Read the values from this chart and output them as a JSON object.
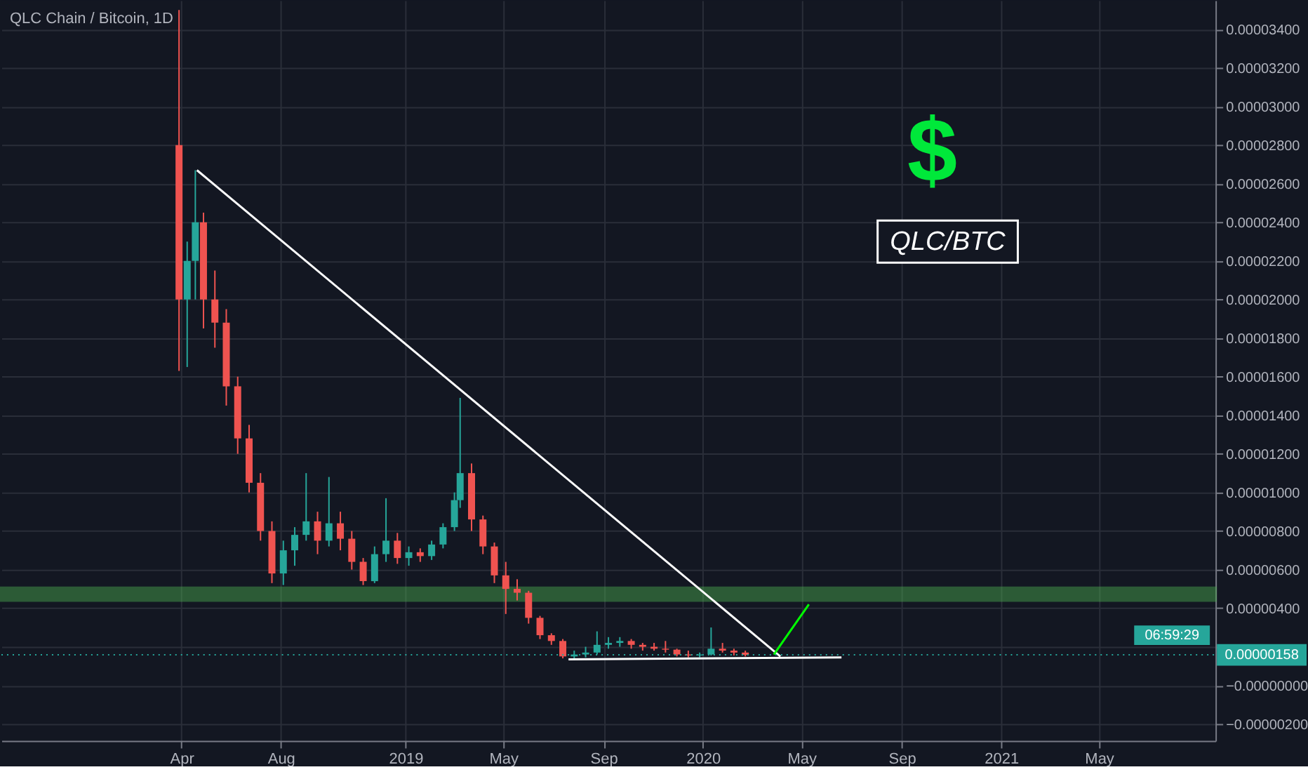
{
  "chart_data": {
    "type": "candlestick",
    "title": "QLC Chain / Bitcoin, 1D",
    "x": [
      "2018-03-29",
      "2018-04-08",
      "2018-04-18",
      "2018-04-28",
      "2018-05-12",
      "2018-05-26",
      "2018-06-09",
      "2018-06-23",
      "2018-07-07",
      "2018-07-21",
      "2018-08-04",
      "2018-08-18",
      "2018-09-01",
      "2018-09-15",
      "2018-09-29",
      "2018-10-13",
      "2018-10-27",
      "2018-11-10",
      "2018-11-24",
      "2018-12-08",
      "2018-12-22",
      "2019-01-05",
      "2019-01-19",
      "2019-02-02",
      "2019-02-16",
      "2019-03-02",
      "2019-03-09",
      "2019-03-23",
      "2019-04-06",
      "2019-04-20",
      "2019-05-04",
      "2019-05-18",
      "2019-06-01",
      "2019-06-15",
      "2019-06-29",
      "2019-07-13",
      "2019-07-27",
      "2019-08-10",
      "2019-08-24",
      "2019-09-07",
      "2019-09-21",
      "2019-10-05",
      "2019-10-19",
      "2019-11-02",
      "2019-11-16",
      "2019-11-30",
      "2019-12-14",
      "2019-12-28",
      "2020-01-11",
      "2020-01-25",
      "2020-02-08",
      "2020-02-22"
    ],
    "ohlc": [
      [
        2.8e-05,
        3.5e-05,
        1.63e-05,
        2e-05
      ],
      [
        2e-05,
        2.3e-05,
        1.65e-05,
        2.2e-05
      ],
      [
        2.2e-05,
        2.67e-05,
        2e-05,
        2.4e-05
      ],
      [
        2.4e-05,
        2.45e-05,
        1.85e-05,
        2e-05
      ],
      [
        2e-05,
        2.15e-05,
        1.75e-05,
        1.88e-05
      ],
      [
        1.88e-05,
        1.95e-05,
        1.45e-05,
        1.55e-05
      ],
      [
        1.55e-05,
        1.6e-05,
        1.2e-05,
        1.28e-05
      ],
      [
        1.28e-05,
        1.35e-05,
        1e-05,
        1.05e-05
      ],
      [
        1.05e-05,
        1.1e-05,
        7.5e-06,
        8e-06
      ],
      [
        8e-06,
        8.5e-06,
        5.3e-06,
        5.8e-06
      ],
      [
        5.8e-06,
        7.5e-06,
        5.2e-06,
        7e-06
      ],
      [
        7e-06,
        8.2e-06,
        6.2e-06,
        7.8e-06
      ],
      [
        7.8e-06,
        1.1e-05,
        7.5e-06,
        8.5e-06
      ],
      [
        8.5e-06,
        9e-06,
        6.8e-06,
        7.5e-06
      ],
      [
        7.5e-06,
        1.08e-05,
        7.2e-06,
        8.4e-06
      ],
      [
        8.4e-06,
        9e-06,
        7e-06,
        7.6e-06
      ],
      [
        7.6e-06,
        8e-06,
        6e-06,
        6.4e-06
      ],
      [
        6.4e-06,
        6.6e-06,
        5.2e-06,
        5.4e-06
      ],
      [
        5.4e-06,
        7.2e-06,
        5.3e-06,
        6.8e-06
      ],
      [
        6.8e-06,
        9.7e-06,
        6.4e-06,
        7.5e-06
      ],
      [
        7.5e-06,
        7.9e-06,
        6.3e-06,
        6.6e-06
      ],
      [
        6.6e-06,
        7.2e-06,
        6.2e-06,
        6.9e-06
      ],
      [
        6.9e-06,
        7.1e-06,
        6.4e-06,
        6.7e-06
      ],
      [
        6.7e-06,
        7.5e-06,
        6.5e-06,
        7.3e-06
      ],
      [
        7.3e-06,
        8.4e-06,
        7.1e-06,
        8.2e-06
      ],
      [
        8.2e-06,
        1e-05,
        8e-06,
        9.6e-06
      ],
      [
        9.6e-06,
        1.49e-05,
        9.2e-06,
        1.1e-05
      ],
      [
        1.1e-05,
        1.15e-05,
        8e-06,
        8.6e-06
      ],
      [
        8.6e-06,
        8.8e-06,
        6.8e-06,
        7.2e-06
      ],
      [
        7.2e-06,
        7.4e-06,
        5.3e-06,
        5.7e-06
      ],
      [
        5.7e-06,
        6.4e-06,
        3.7e-06,
        5e-06
      ],
      [
        5e-06,
        5.5e-06,
        4.4e-06,
        4.8e-06
      ],
      [
        4.8e-06,
        4.9e-06,
        3.2e-06,
        3.5e-06
      ],
      [
        3.5e-06,
        3.6e-06,
        2.4e-06,
        2.6e-06
      ],
      [
        2.6e-06,
        2.7e-06,
        2.1e-06,
        2.3e-06
      ],
      [
        2.3e-06,
        2.4e-06,
        1.4e-06,
        1.5e-06
      ],
      [
        1.5e-06,
        1.8e-06,
        1.4e-06,
        1.6e-06
      ],
      [
        1.6e-06,
        2e-06,
        1.45e-06,
        1.7e-06
      ],
      [
        1.7e-06,
        2.8e-06,
        1.6e-06,
        2.1e-06
      ],
      [
        2.1e-06,
        2.5e-06,
        1.9e-06,
        2.2e-06
      ],
      [
        2.2e-06,
        2.5e-06,
        2e-06,
        2.3e-06
      ],
      [
        2.3e-06,
        2.4e-06,
        1.9e-06,
        2.1e-06
      ],
      [
        2.1e-06,
        2.2e-06,
        1.8e-06,
        2e-06
      ],
      [
        2e-06,
        2.2e-06,
        1.8e-06,
        1.9e-06
      ],
      [
        1.9e-06,
        2.3e-06,
        1.7e-06,
        1.85e-06
      ],
      [
        1.85e-06,
        1.9e-06,
        1.5e-06,
        1.6e-06
      ],
      [
        1.6e-06,
        1.8e-06,
        1.45e-06,
        1.55e-06
      ],
      [
        1.55e-06,
        1.7e-06,
        1.45e-06,
        1.6e-06
      ],
      [
        1.6e-06,
        3e-06,
        1.55e-06,
        1.9e-06
      ],
      [
        1.9e-06,
        2.2e-06,
        1.7e-06,
        1.8e-06
      ],
      [
        1.8e-06,
        1.9e-06,
        1.55e-06,
        1.7e-06
      ],
      [
        1.7e-06,
        1.8e-06,
        1.5e-06,
        1.58e-06
      ]
    ],
    "colors": [
      "#ef5350",
      "#26a69a",
      "#26a69a",
      "#ef5350",
      "#ef5350",
      "#ef5350",
      "#ef5350",
      "#ef5350",
      "#ef5350",
      "#ef5350",
      "#26a69a",
      "#26a69a",
      "#26a69a",
      "#ef5350",
      "#26a69a",
      "#ef5350",
      "#ef5350",
      "#ef5350",
      "#26a69a",
      "#26a69a",
      "#ef5350",
      "#26a69a",
      "#ef5350",
      "#26a69a",
      "#26a69a",
      "#26a69a",
      "#26a69a",
      "#ef5350",
      "#ef5350",
      "#ef5350",
      "#ef5350",
      "#ef5350",
      "#ef5350",
      "#ef5350",
      "#ef5350",
      "#ef5350",
      "#26a69a",
      "#26a69a",
      "#26a69a",
      "#26a69a",
      "#26a69a",
      "#ef5350",
      "#ef5350",
      "#ef5350",
      "#ef5350",
      "#ef5350",
      "#ef5350",
      "#26a69a",
      "#26a69a",
      "#ef5350",
      "#ef5350",
      "#ef5350"
    ],
    "series": [
      {
        "type": "line",
        "color": "#ffffff",
        "x": [
          "2018-04-20",
          "2020-04-05"
        ],
        "values": [
          2.67e-05,
          1.5e-06
        ]
      },
      {
        "type": "line",
        "color": "#ffffff",
        "x": [
          "2019-07-20",
          "2020-06-19"
        ],
        "values": [
          1.35e-06,
          1.45e-06
        ]
      },
      {
        "type": "line",
        "color": "#00ff00",
        "x": [
          "2020-03-28",
          "2020-05-10"
        ],
        "values": [
          1.6e-06,
          4.2e-06
        ]
      }
    ],
    "xlim": [
      "2017-08-23",
      "2021-09-21"
    ],
    "xticks": [
      {
        "value": "2018-04-01",
        "label": "Apr"
      },
      {
        "value": "2018-08-01",
        "label": "Aug"
      },
      {
        "value": "2019-01-01",
        "label": "2019"
      },
      {
        "value": "2019-05-01",
        "label": "May"
      },
      {
        "value": "2019-09-01",
        "label": "Sep"
      },
      {
        "value": "2020-01-01",
        "label": "2020"
      },
      {
        "value": "2020-05-01",
        "label": "May"
      },
      {
        "value": "2020-09-01",
        "label": "Sep"
      },
      {
        "value": "2021-01-01",
        "label": "2021"
      },
      {
        "value": "2021-05-01",
        "label": "May"
      }
    ],
    "ylim": [
      -2.87e-06,
      3.55e-05
    ],
    "yticks": [
      {
        "value": -2e-06,
        "label": "−0.00000200"
      },
      {
        "value": 0,
        "label": "−0.00000000"
      },
      {
        "value": 2e-06,
        "label": null
      },
      {
        "value": 4e-06,
        "label": "0.00000400"
      },
      {
        "value": 6e-06,
        "label": "0.00000600"
      },
      {
        "value": 8e-06,
        "label": "0.00000800"
      },
      {
        "value": 1e-05,
        "label": "0.00001000"
      },
      {
        "value": 1.2e-05,
        "label": "0.00001200"
      },
      {
        "value": 1.4e-05,
        "label": "0.00001400"
      },
      {
        "value": 1.6e-05,
        "label": "0.00001600"
      },
      {
        "value": 1.8e-05,
        "label": "0.00001800"
      },
      {
        "value": 2e-05,
        "label": "0.00002000"
      },
      {
        "value": 2.2e-05,
        "label": "0.00002200"
      },
      {
        "value": 2.4e-05,
        "label": "0.00002400"
      },
      {
        "value": 2.6e-05,
        "label": "0.00002600"
      },
      {
        "value": 2.8e-05,
        "label": "0.00002800"
      },
      {
        "value": 3e-05,
        "label": "0.00003000"
      },
      {
        "value": 3.2e-05,
        "label": "0.00003200"
      },
      {
        "value": 3.4e-05,
        "label": "0.00003400"
      }
    ],
    "ref_lines": [
      {
        "axis": "y",
        "value": 1.58e-06,
        "label": "0.00000158",
        "color": "#26a69a",
        "line_style": "dotted"
      }
    ],
    "bands": [
      {
        "axis": "y",
        "from": 4.4e-06,
        "to": 5.05e-06,
        "color": "#4caf50"
      }
    ],
    "annotations": [
      "$",
      "QLC/BTC",
      "06:59:29"
    ],
    "grid": true,
    "marker": "none"
  }
}
